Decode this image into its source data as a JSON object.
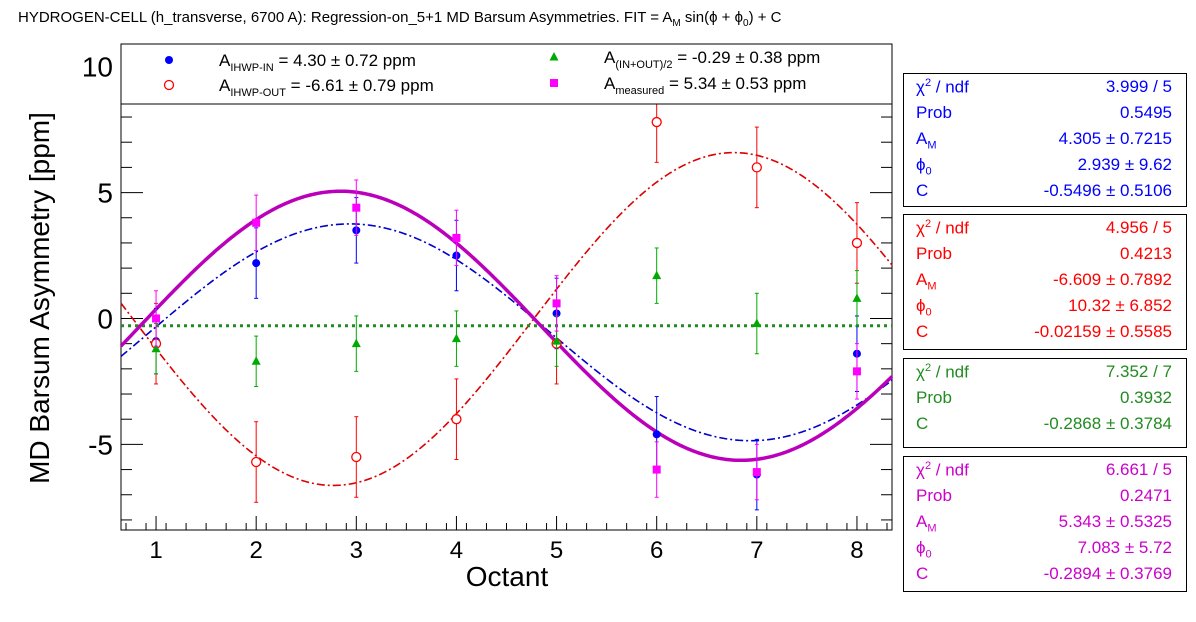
{
  "title": {
    "prefix": "HYDROGEN-CELL (h_transverse, 6700 A): Regression-on_5+1 MD Barsum Asymmetries. FIT = A",
    "sub": "M",
    "suffix": " sin(ϕ + ϕ",
    "sub2": "0",
    "end": ") + C"
  },
  "colors": {
    "in": "#0000ff",
    "out": "#ff0000",
    "sum": "#00aa00",
    "measured": "#ff00ff",
    "in_fit": "#0000cc",
    "out_fit": "#dd0000",
    "sum_fit": "#228b22",
    "measured_fit": "#bb00bb"
  },
  "chart_data": {
    "type": "scatter",
    "xlabel": "Octant",
    "ylabel": "MD Barsum Asymmetry [ppm]",
    "xlim": [
      0.65,
      8.35
    ],
    "ylim": [
      -8.4,
      10.9
    ],
    "x_ticks": [
      1,
      2,
      3,
      4,
      5,
      6,
      7,
      8
    ],
    "y_ticks": [
      -5,
      0,
      5,
      10
    ],
    "x_tick_labels": [
      "1",
      "2",
      "3",
      "4",
      "5",
      "6",
      "7",
      "8"
    ],
    "y_tick_labels": [
      "-5",
      "0",
      "5",
      "10"
    ],
    "series": [
      {
        "key": "in",
        "legend_main": "A",
        "legend_sub": "IHWP-IN",
        "legend_text": " = 4.30 ± 0.72 ppm",
        "marker": "filled-circle",
        "x": [
          1,
          2,
          3,
          4,
          5,
          6,
          7,
          8
        ],
        "y": [
          -0.9,
          2.2,
          3.5,
          2.5,
          0.2,
          -4.6,
          -6.2,
          -1.4
        ],
        "err": [
          1.3,
          1.4,
          1.3,
          1.4,
          1.4,
          1.5,
          1.4,
          1.5
        ]
      },
      {
        "key": "out",
        "legend_main": "A",
        "legend_sub": "IHWP-OUT",
        "legend_text": " = -6.61 ± 0.79 ppm",
        "marker": "open-circle",
        "x": [
          1,
          2,
          3,
          4,
          5,
          6,
          7,
          8
        ],
        "y": [
          -1.0,
          -5.7,
          -5.5,
          -4.0,
          -1.0,
          7.8,
          6.0,
          3.0
        ],
        "err": [
          1.6,
          1.6,
          1.6,
          1.6,
          1.6,
          1.6,
          1.6,
          1.6
        ]
      },
      {
        "key": "sum",
        "legend_main": "A",
        "legend_sub": "(IN+OUT)/2",
        "legend_text": " = -0.29 ± 0.38 ppm",
        "marker": "triangle",
        "x": [
          1,
          2,
          3,
          4,
          5,
          6,
          7,
          8
        ],
        "y": [
          -1.2,
          -1.7,
          -1.0,
          -0.8,
          -0.9,
          1.7,
          -0.2,
          0.8
        ],
        "err": [
          1.0,
          1.0,
          1.1,
          1.1,
          1.0,
          1.1,
          1.2,
          1.1
        ]
      },
      {
        "key": "measured",
        "legend_main": "A",
        "legend_sub": "measured",
        "legend_text": " = 5.34 ± 0.53 ppm",
        "marker": "square",
        "x": [
          1,
          2,
          3,
          4,
          5,
          6,
          7,
          8
        ],
        "y": [
          0.0,
          3.8,
          4.4,
          3.2,
          0.6,
          -6.0,
          -6.1,
          -2.1
        ],
        "err": [
          1.1,
          1.1,
          1.1,
          1.1,
          1.1,
          1.1,
          1.1,
          1.1
        ]
      }
    ],
    "fits": [
      {
        "key": "in",
        "style": "dash-dot",
        "amplitude": 4.305,
        "phase_deg": 2.939,
        "offset": -0.5496
      },
      {
        "key": "out",
        "style": "dash-dot",
        "amplitude": -6.609,
        "phase_deg": 10.32,
        "offset": -0.02159
      },
      {
        "key": "sum",
        "style": "dotted",
        "amplitude": 0,
        "phase_deg": 0,
        "offset": -0.2868
      },
      {
        "key": "measured",
        "style": "solid",
        "amplitude": 5.343,
        "phase_deg": 7.083,
        "offset": -0.2894
      }
    ]
  },
  "stats": {
    "in": {
      "chi_label": "χ",
      "chi_sup": "2",
      "chi_rest": " / ndf",
      "chi_val": "3.999 / 5",
      "prob_label": "Prob",
      "prob_val": "0.5495",
      "am_label": "A",
      "am_sub": "M",
      "am_val": "4.305 ± 0.7215",
      "phi_label": "ϕ",
      "phi_sub": "0",
      "phi_val": "2.939 ±  9.62",
      "c_label": "C",
      "c_val": "-0.5496 ± 0.5106"
    },
    "out": {
      "chi_label": "χ",
      "chi_sup": "2",
      "chi_rest": " / ndf",
      "chi_val": "4.956 / 5",
      "prob_label": "Prob",
      "prob_val": "0.4213",
      "am_label": "A",
      "am_sub": "M",
      "am_val": "-6.609 ± 0.7892",
      "phi_label": "ϕ",
      "phi_sub": "0",
      "phi_val": "10.32 ± 6.852",
      "c_label": "C",
      "c_val": "-0.02159 ± 0.5585"
    },
    "sum": {
      "chi_label": "χ",
      "chi_sup": "2",
      "chi_rest": " / ndf",
      "chi_val": "7.352 / 7",
      "prob_label": "Prob",
      "prob_val": "0.3932",
      "c_label": "C",
      "c_val": "-0.2868 ± 0.3784"
    },
    "measured": {
      "chi_label": "χ",
      "chi_sup": "2",
      "chi_rest": " / ndf",
      "chi_val": "6.661 / 5",
      "prob_label": "Prob",
      "prob_val": "0.2471",
      "am_label": "A",
      "am_sub": "M",
      "am_val": "5.343 ± 0.5325",
      "phi_label": "ϕ",
      "phi_sub": "0",
      "phi_val": "7.083 ±  5.72",
      "c_label": "C",
      "c_val": "-0.2894 ± 0.3769"
    }
  }
}
